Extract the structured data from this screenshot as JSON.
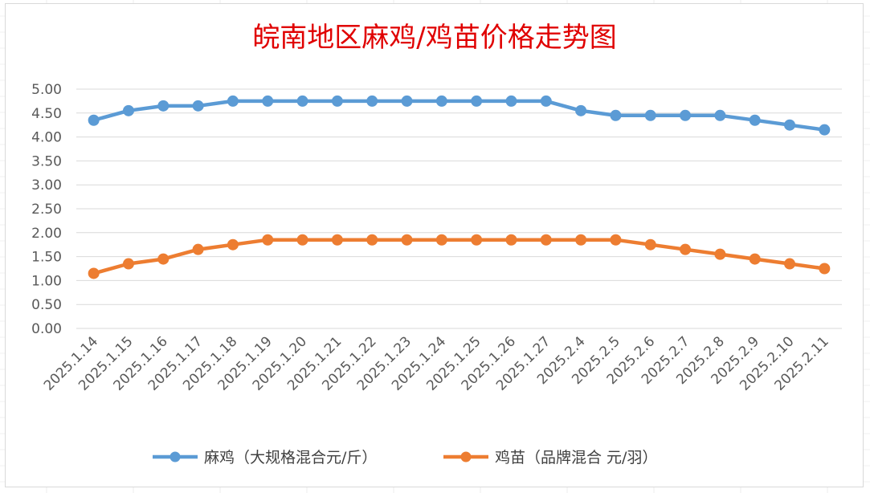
{
  "chart_data": {
    "type": "line",
    "title": "皖南地区麻鸡/鸡苗价格走势图",
    "categories": [
      "2025.1.14",
      "2025.1.15",
      "2025.1.16",
      "2025.1.17",
      "2025.1.18",
      "2025.1.19",
      "2025.1.20",
      "2025.1.21",
      "2025.1.22",
      "2025.1.23",
      "2025.1.24",
      "2025.1.25",
      "2025.1.26",
      "2025.1.27",
      "2025.2.4",
      "2025.2.5",
      "2025.2.6",
      "2025.2.7",
      "2025.2.8",
      "2025.2.9",
      "2025.2.10",
      "2025.2.11"
    ],
    "yticks": [
      "0.00",
      "0.50",
      "1.00",
      "1.50",
      "2.00",
      "2.50",
      "3.00",
      "3.50",
      "4.00",
      "4.50",
      "5.00"
    ],
    "ylim": [
      0,
      5
    ],
    "grid": true,
    "legend_position": "bottom",
    "series": [
      {
        "name": "麻鸡（大规格混合元/斤）",
        "color": "#5b9bd5",
        "values": [
          4.35,
          4.55,
          4.65,
          4.65,
          4.75,
          4.75,
          4.75,
          4.75,
          4.75,
          4.75,
          4.75,
          4.75,
          4.75,
          4.75,
          4.55,
          4.45,
          4.45,
          4.45,
          4.45,
          4.35,
          4.25,
          4.15
        ]
      },
      {
        "name": "鸡苗（品牌混合 元/羽）",
        "color": "#ed7d31",
        "values": [
          1.15,
          1.35,
          1.45,
          1.65,
          1.75,
          1.85,
          1.85,
          1.85,
          1.85,
          1.85,
          1.85,
          1.85,
          1.85,
          1.85,
          1.85,
          1.85,
          1.75,
          1.65,
          1.55,
          1.45,
          1.35,
          1.25
        ]
      }
    ]
  }
}
